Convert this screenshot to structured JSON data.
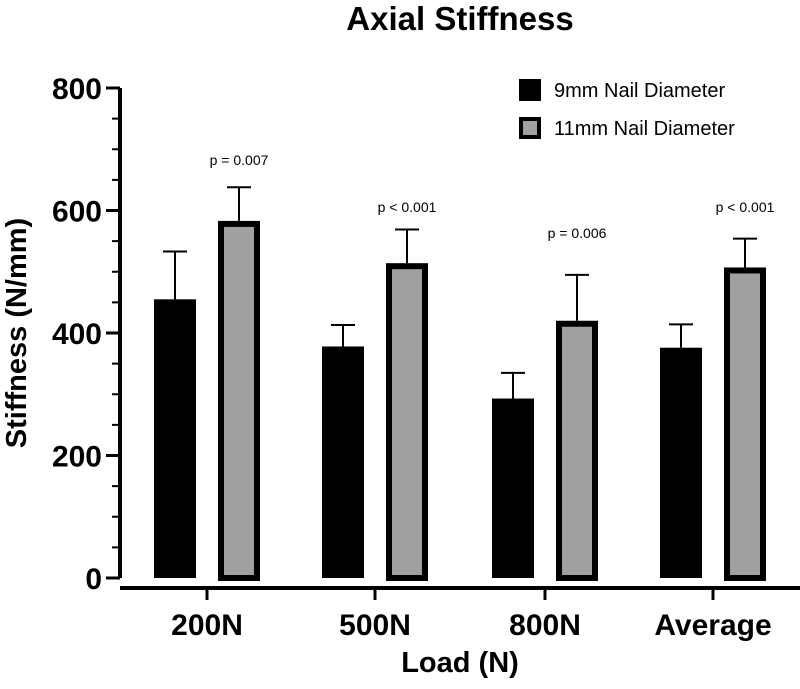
{
  "chart_data": {
    "type": "bar",
    "title": "Axial Stiffness",
    "xlabel": "Load (N)",
    "ylabel": "Stiffness (N/mm)",
    "ylim": [
      0,
      800
    ],
    "yticks": [
      0,
      200,
      400,
      600,
      800
    ],
    "categories": [
      "200N",
      "500N",
      "800N",
      "Average"
    ],
    "series": [
      {
        "name": "9mm Nail Diameter",
        "color": "#000000",
        "values": [
          455,
          378,
          293,
          376
        ],
        "errors": [
          78,
          35,
          42,
          38
        ]
      },
      {
        "name": "11mm Nail Diameter",
        "color": "#a0a0a0",
        "values": [
          583,
          514,
          420,
          507
        ],
        "errors": [
          55,
          55,
          75,
          47
        ]
      }
    ],
    "annotations": [
      "p = 0.007",
      "p < 0.001",
      "p = 0.006",
      "p < 0.001"
    ],
    "legend_position": "top-right",
    "grid": false
  }
}
